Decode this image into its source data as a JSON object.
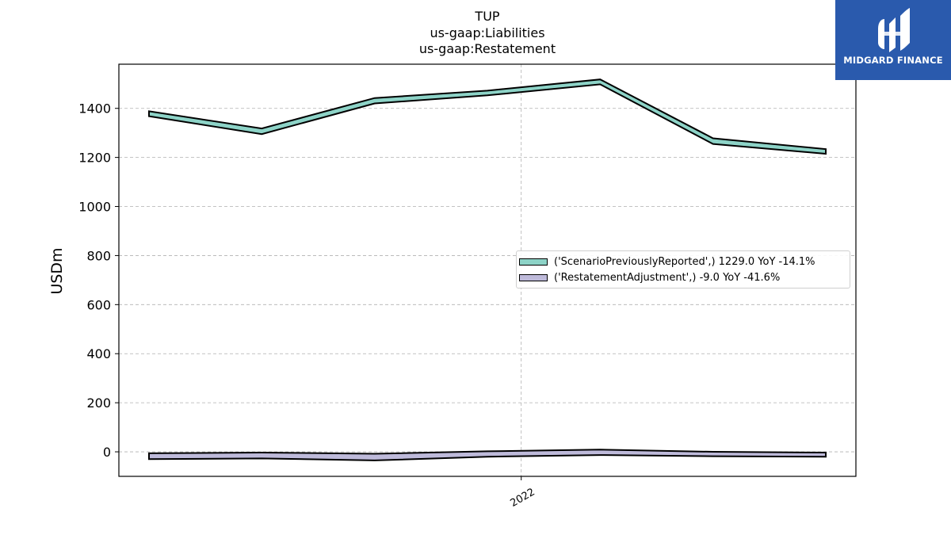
{
  "title": {
    "line1": "TUP",
    "line2": "us-gaap:Liabilities",
    "line3": "us-gaap:Restatement"
  },
  "logo": {
    "text": "MIDGARD FINANCE",
    "background": "#2a5aad"
  },
  "chart_data": {
    "type": "area",
    "title": "TUP\nus-gaap:Liabilities\nus-gaap:Restatement",
    "xlabel": "",
    "ylabel": "USDm",
    "ylim": [
      -100,
      1580
    ],
    "yticks": [
      0,
      200,
      400,
      600,
      800,
      1000,
      1200,
      1400
    ],
    "xticks": [
      {
        "label": "2022",
        "at_index": 3.3
      }
    ],
    "grid": true,
    "legend_placement": "center-right",
    "series": [
      {
        "name": "('ScenarioPreviouslyReported',) 1229.0 YoY -14.1%",
        "color": "#8dd3c7",
        "upper": [
          1388,
          1318,
          1442,
          1472,
          1518,
          1278,
          1234
        ],
        "lower": [
          1368,
          1295,
          1420,
          1453,
          1498,
          1255,
          1215
        ]
      },
      {
        "name": "('RestatementAdjustment',) -9.0 YoY -41.6%",
        "color": "#bebada",
        "upper": [
          -6,
          -3,
          -8,
          2,
          9,
          0,
          -3
        ],
        "lower": [
          -30,
          -27,
          -35,
          -20,
          -13,
          -18,
          -20
        ]
      }
    ]
  }
}
